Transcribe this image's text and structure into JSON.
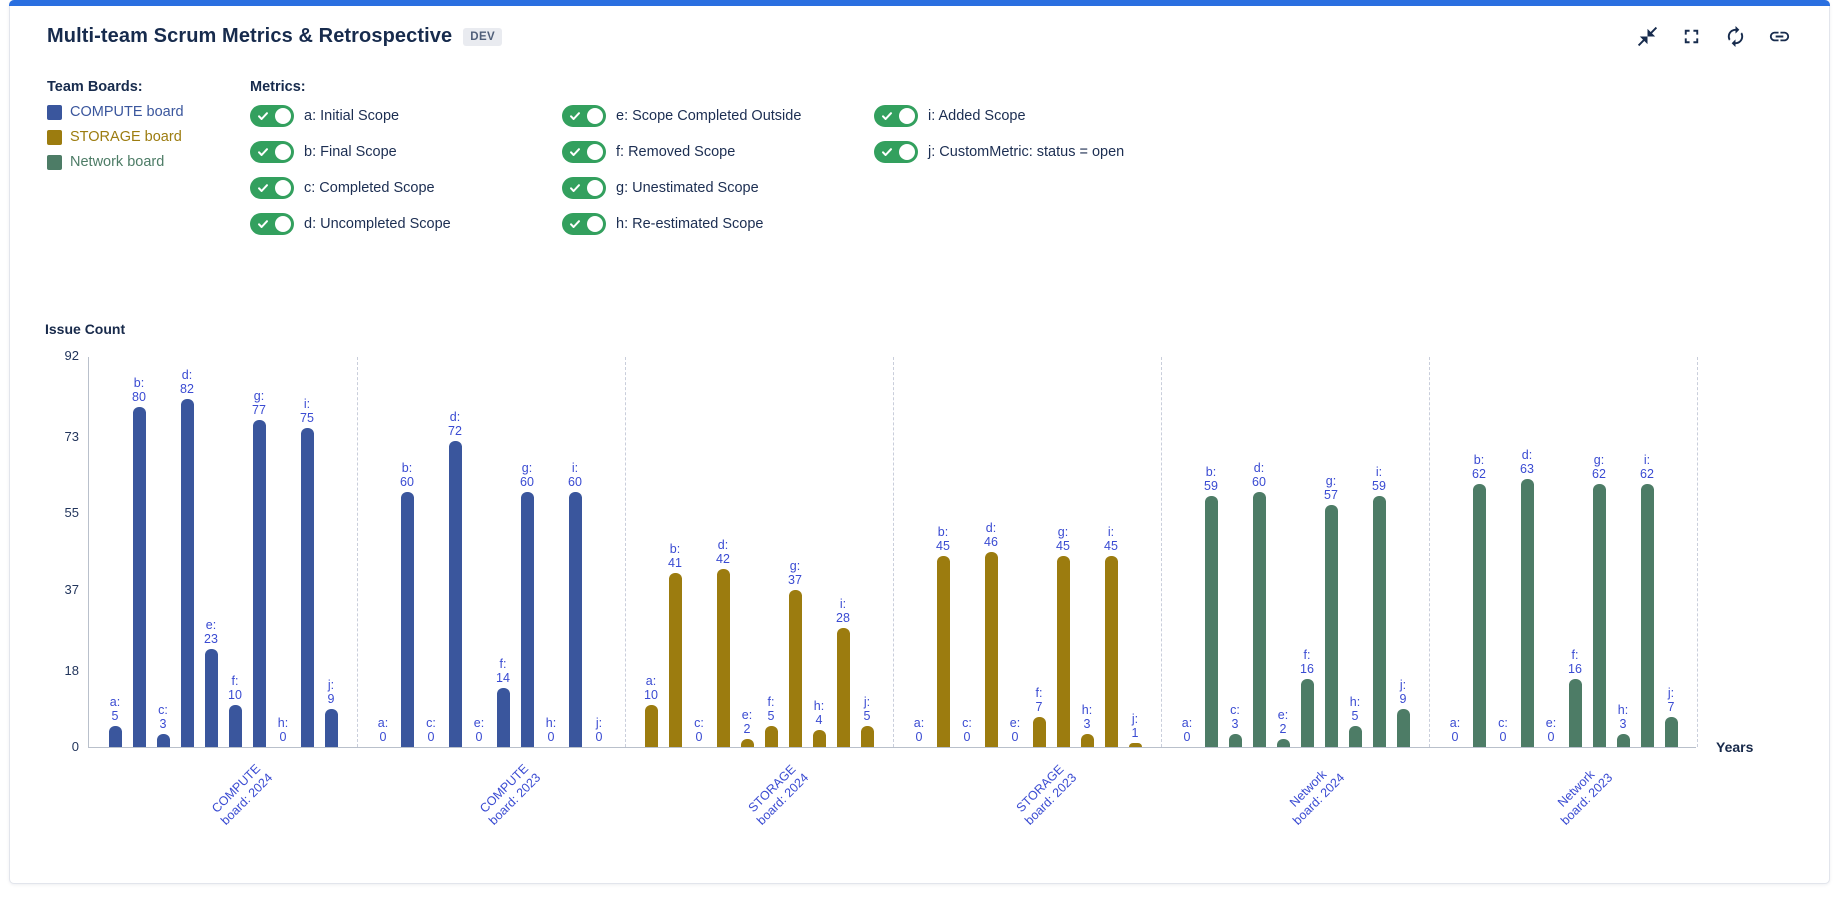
{
  "header": {
    "title": "Multi-team Scrum Metrics & Retrospective",
    "badge": "DEV",
    "icons": [
      "collapse-icon",
      "fullscreen-icon",
      "refresh-icon",
      "link-icon"
    ]
  },
  "legend": {
    "boards_label": "Team Boards:",
    "boards": [
      {
        "label": "COMPUTE board",
        "color": "#3a569d"
      },
      {
        "label": "STORAGE board",
        "color": "#9c7c0f"
      },
      {
        "label": "Network board",
        "color": "#4d7c66"
      }
    ]
  },
  "metrics": {
    "label": "Metrics:",
    "columns": [
      4,
      4,
      2
    ],
    "items": [
      {
        "key": "a",
        "label": "a: Initial Scope",
        "enabled": true
      },
      {
        "key": "b",
        "label": "b: Final Scope",
        "enabled": true
      },
      {
        "key": "c",
        "label": "c: Completed Scope",
        "enabled": true
      },
      {
        "key": "d",
        "label": "d: Uncompleted Scope",
        "enabled": true
      },
      {
        "key": "e",
        "label": "e: Scope Completed Outside",
        "enabled": true
      },
      {
        "key": "f",
        "label": "f: Removed Scope",
        "enabled": true
      },
      {
        "key": "g",
        "label": "g: Unestimated Scope",
        "enabled": true
      },
      {
        "key": "h",
        "label": "h: Re-estimated Scope",
        "enabled": true
      },
      {
        "key": "i",
        "label": "i: Added Scope",
        "enabled": true
      },
      {
        "key": "j",
        "label": "j: CustomMetric: status = open",
        "enabled": true
      }
    ]
  },
  "chart_data": {
    "type": "bar",
    "ylabel": "Issue Count",
    "xlabel": "Years",
    "ylim": [
      0,
      92
    ],
    "yticks": [
      0,
      18,
      37,
      55,
      73,
      92
    ],
    "grid": false,
    "legend_position": "top",
    "metric_letters": [
      "a",
      "b",
      "c",
      "d",
      "e",
      "f",
      "g",
      "h",
      "i",
      "j"
    ],
    "label_color": "#3a4bd2",
    "groups": [
      {
        "label": "COMPUTE board: 2024",
        "label_lines": [
          "COMPUTE",
          "board: 2024"
        ],
        "color": "#3a569d",
        "values": [
          5,
          80,
          3,
          82,
          23,
          10,
          77,
          0,
          75,
          9
        ]
      },
      {
        "label": "COMPUTE board: 2023",
        "label_lines": [
          "COMPUTE",
          "board: 2023"
        ],
        "color": "#3a569d",
        "values": [
          0,
          60,
          0,
          72,
          0,
          14,
          60,
          0,
          60,
          0
        ]
      },
      {
        "label": "STORAGE board: 2024",
        "label_lines": [
          "STORAGE",
          "board: 2024"
        ],
        "color": "#9c7c0f",
        "values": [
          10,
          41,
          0,
          42,
          2,
          5,
          37,
          4,
          28,
          5
        ]
      },
      {
        "label": "STORAGE board: 2023",
        "label_lines": [
          "STORAGE",
          "board: 2023"
        ],
        "color": "#9c7c0f",
        "values": [
          0,
          45,
          0,
          46,
          0,
          7,
          45,
          3,
          45,
          1
        ]
      },
      {
        "label": "Network board: 2024",
        "label_lines": [
          "Network",
          "board: 2024"
        ],
        "color": "#4d7c66",
        "values": [
          0,
          59,
          3,
          60,
          2,
          16,
          57,
          5,
          59,
          9
        ]
      },
      {
        "label": "Network board: 2023",
        "label_lines": [
          "Network",
          "board: 2023"
        ],
        "color": "#4d7c66",
        "values": [
          0,
          62,
          0,
          63,
          0,
          16,
          62,
          3,
          62,
          7
        ]
      }
    ]
  },
  "colors": {
    "accent_bar": "#2a6fe0",
    "toggle_on": "#33a05e",
    "title_text": "#172b4d"
  }
}
